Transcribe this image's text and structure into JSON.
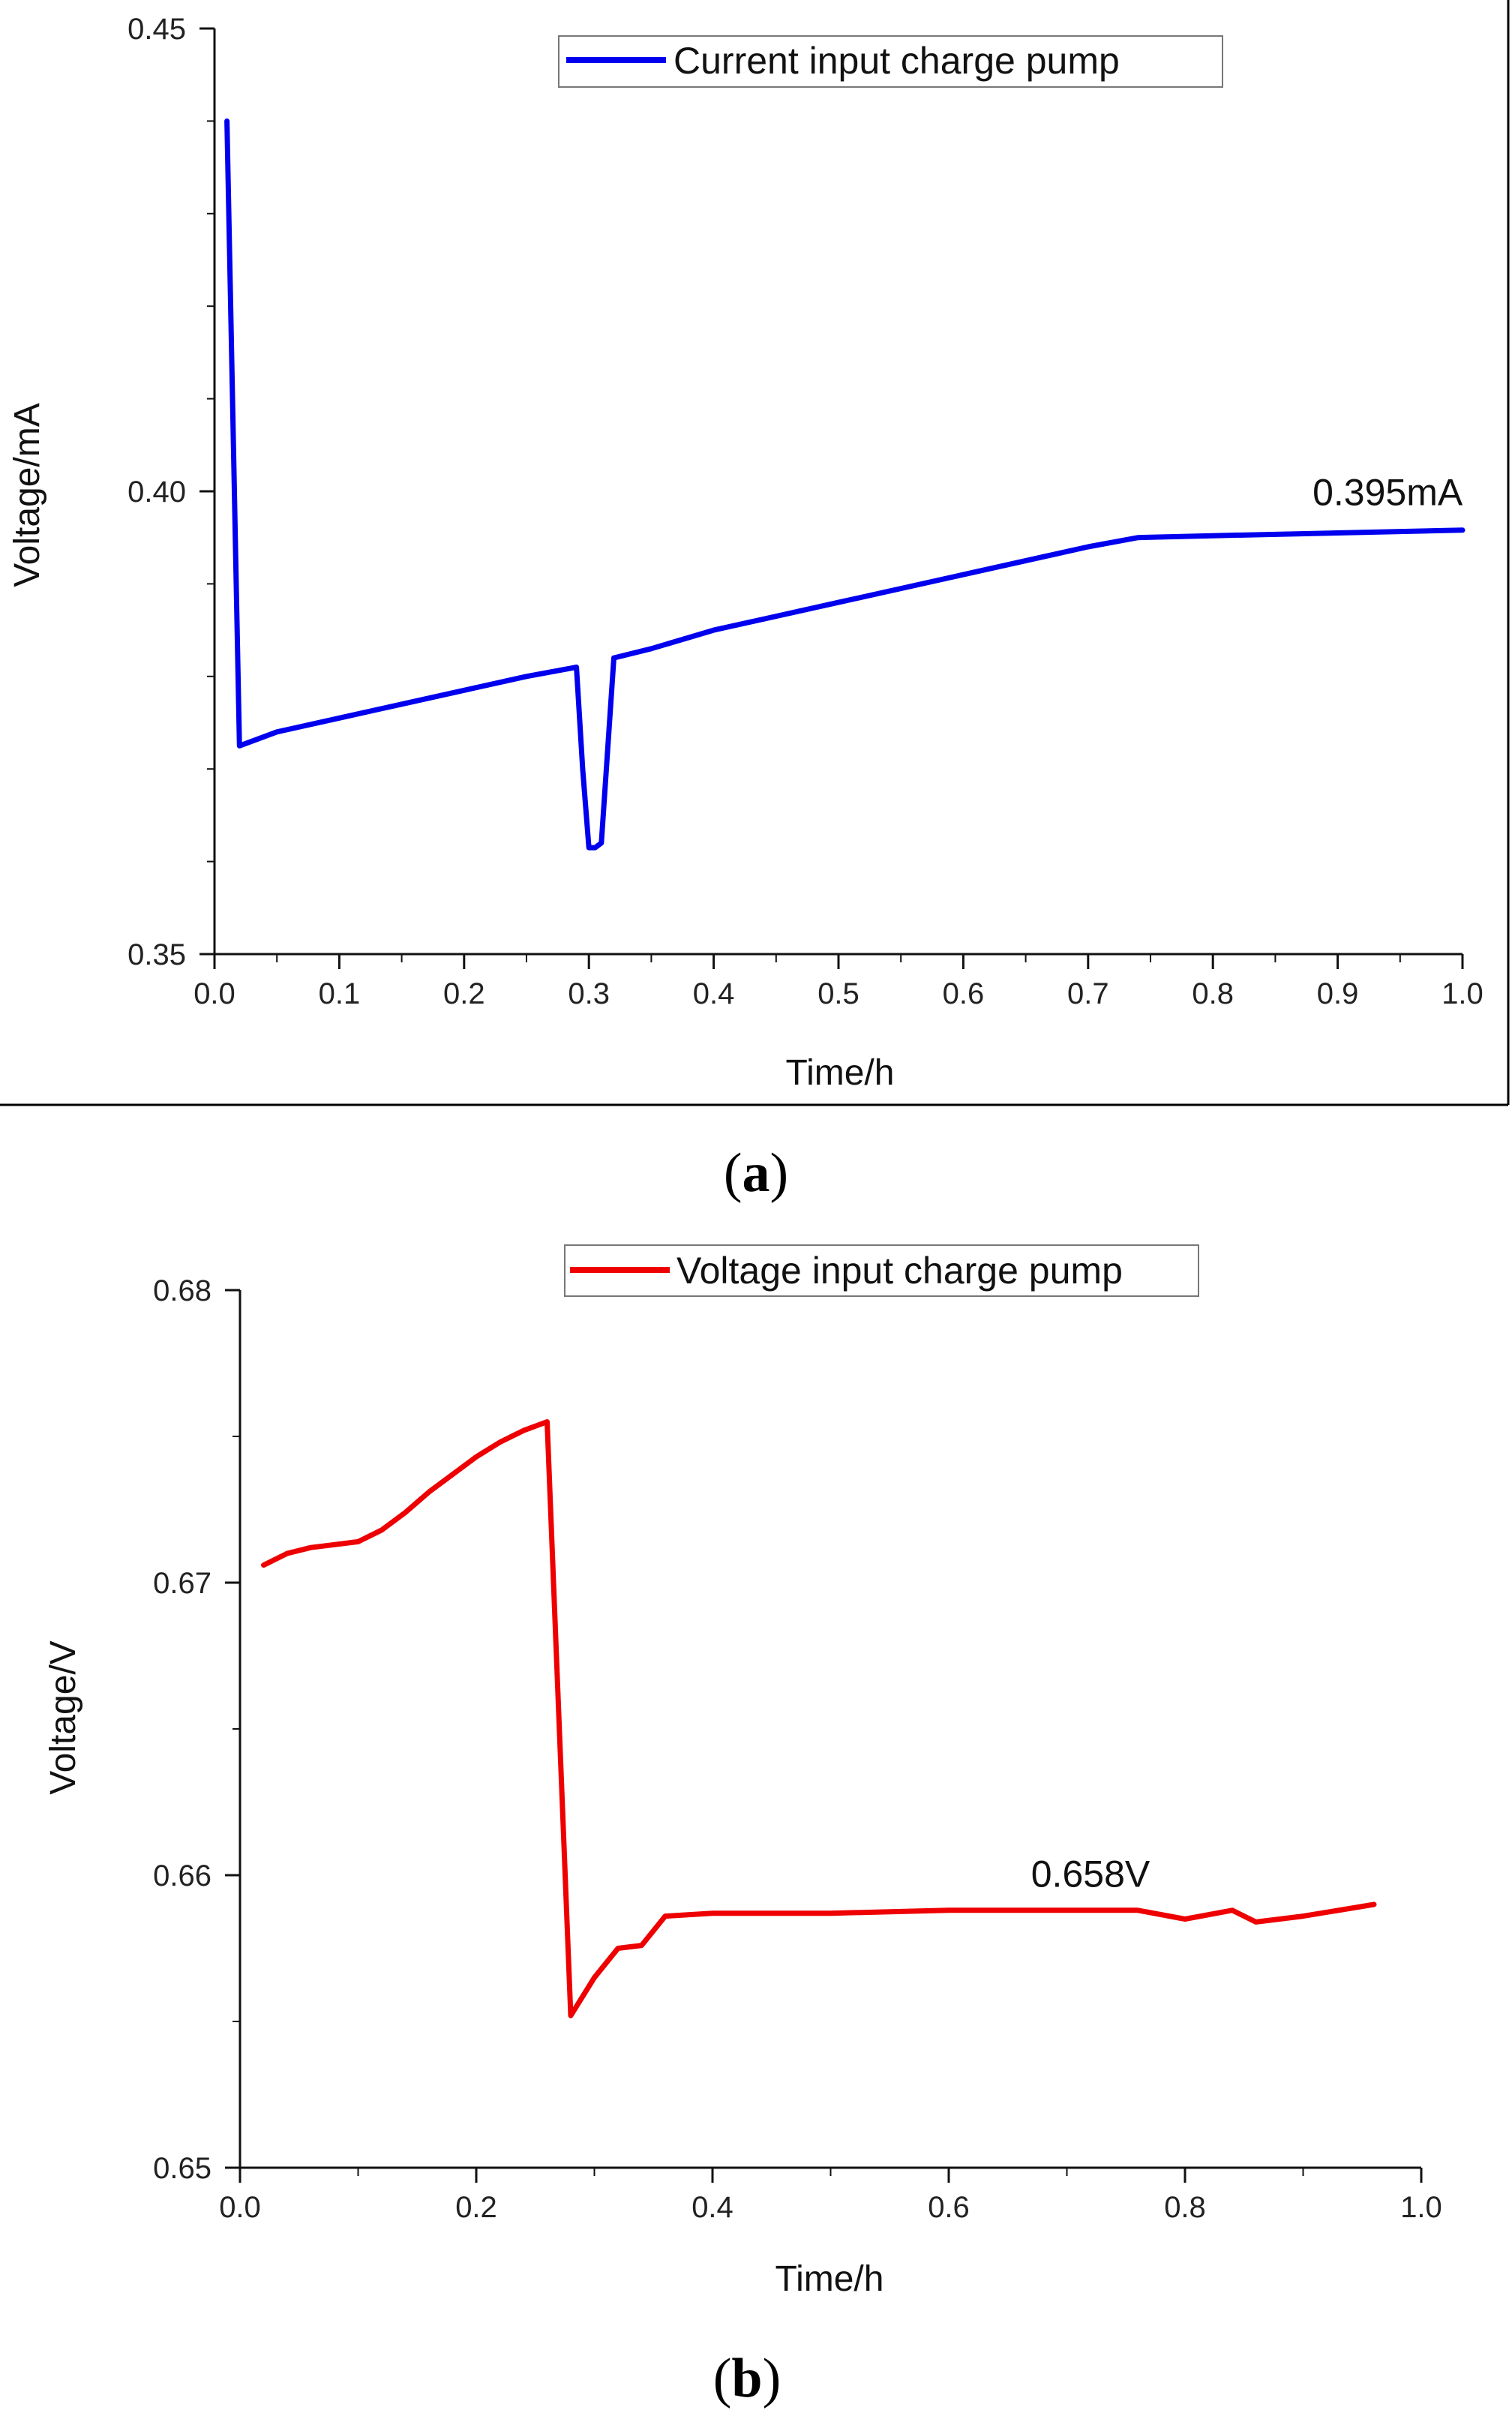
{
  "chart_data": [
    {
      "panel_label": "a",
      "type": "line",
      "xlabel": "Time/h",
      "ylabel": "Voltage/mA",
      "xlim": [
        0.0,
        1.0
      ],
      "ylim": [
        0.35,
        0.45
      ],
      "x_ticks": [
        0.0,
        0.1,
        0.2,
        0.3,
        0.4,
        0.5,
        0.6,
        0.7,
        0.8,
        0.9,
        1.0
      ],
      "x_tick_labels": [
        "0.0",
        "0.1",
        "0.2",
        "0.3",
        "0.4",
        "0.5",
        "0.6",
        "0.7",
        "0.8",
        "0.9",
        "1.0"
      ],
      "y_ticks": [
        0.35,
        0.4,
        0.45
      ],
      "y_tick_labels": [
        "0.35",
        "0.40",
        "0.45"
      ],
      "y_minor_step": 0.01,
      "grid": false,
      "legend_position": "top-center",
      "series": [
        {
          "name": "Current input charge pump",
          "color": "#0000ee",
          "x": [
            0.01,
            0.02,
            0.03,
            0.05,
            0.1,
            0.15,
            0.2,
            0.25,
            0.29,
            0.295,
            0.3,
            0.305,
            0.31,
            0.32,
            0.35,
            0.4,
            0.5,
            0.6,
            0.7,
            0.74,
            0.8,
            0.9,
            1.0
          ],
          "y": [
            0.44,
            0.3725,
            0.373,
            0.374,
            0.3755,
            0.377,
            0.3785,
            0.38,
            0.381,
            0.37,
            0.3615,
            0.3615,
            0.362,
            0.382,
            0.383,
            0.385,
            0.388,
            0.391,
            0.394,
            0.395,
            0.3952,
            0.3955,
            0.3958
          ]
        }
      ],
      "annotations": [
        {
          "text": "0.395mA",
          "x": 0.94,
          "y": 0.3985
        }
      ]
    },
    {
      "panel_label": "b",
      "type": "line",
      "xlabel": "Time/h",
      "ylabel": "Voltage/V",
      "xlim": [
        0.0,
        1.0
      ],
      "ylim": [
        0.65,
        0.68
      ],
      "x_ticks": [
        0.0,
        0.2,
        0.4,
        0.6,
        0.8,
        1.0
      ],
      "x_tick_labels": [
        "0.0",
        "0.2",
        "0.4",
        "0.6",
        "0.8",
        "1.0"
      ],
      "x_minor_step": 0.1,
      "y_ticks": [
        0.65,
        0.66,
        0.67,
        0.68
      ],
      "y_tick_labels": [
        "0.65",
        "0.66",
        "0.67",
        "0.68"
      ],
      "y_minor_step": 0.005,
      "grid": false,
      "legend_position": "top-center",
      "series": [
        {
          "name": "Voltage input charge pump",
          "color": "#ee0000",
          "x": [
            0.02,
            0.04,
            0.06,
            0.08,
            0.1,
            0.12,
            0.14,
            0.16,
            0.18,
            0.2,
            0.22,
            0.24,
            0.26,
            0.28,
            0.3,
            0.32,
            0.34,
            0.36,
            0.4,
            0.5,
            0.6,
            0.7,
            0.76,
            0.8,
            0.84,
            0.86,
            0.9,
            0.96
          ],
          "y": [
            0.6706,
            0.671,
            0.6712,
            0.6713,
            0.6714,
            0.6718,
            0.6724,
            0.6731,
            0.6737,
            0.6743,
            0.6748,
            0.6752,
            0.6755,
            0.6552,
            0.6565,
            0.6575,
            0.6576,
            0.6586,
            0.6587,
            0.6587,
            0.6588,
            0.6588,
            0.6588,
            0.6585,
            0.6588,
            0.6584,
            0.6586,
            0.659
          ]
        }
      ],
      "annotations": [
        {
          "text": "0.658V",
          "x": 0.72,
          "y": 0.6596
        }
      ]
    }
  ]
}
